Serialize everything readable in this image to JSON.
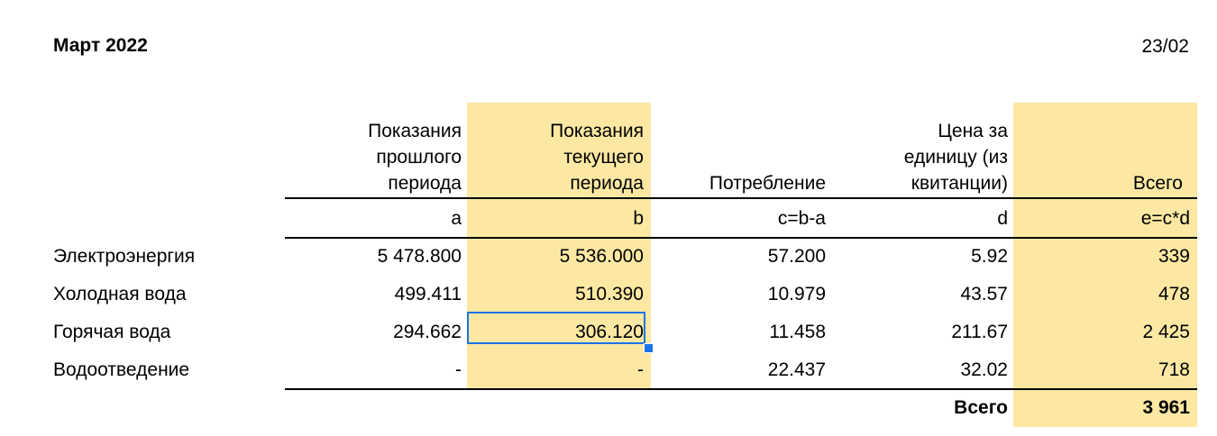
{
  "header": {
    "title": "Март 2022",
    "date": "23/02"
  },
  "columns": [
    {
      "label": "Показания прошлого периода",
      "lines": [
        "Показания",
        "прошлого",
        "периода"
      ],
      "code": "a"
    },
    {
      "label": "Показания текущего периода",
      "lines": [
        "Показания",
        "текущего",
        "периода"
      ],
      "code": "b"
    },
    {
      "label": "Потребление",
      "lines": [
        "",
        "",
        "Потребление"
      ],
      "code": "c=b-a"
    },
    {
      "label": "Цена за единицу (из квитанции)",
      "lines": [
        "Цена за",
        "единицу (из",
        "квитанции)"
      ],
      "code": "d"
    },
    {
      "label": "Всего",
      "lines": [
        "",
        "",
        "Всего"
      ],
      "code": "e=c*d"
    }
  ],
  "rows": [
    {
      "name": "Электроэнергия",
      "a": "5 478.800",
      "b": "5 536.000",
      "c": "57.200",
      "d": "5.92",
      "e": "339"
    },
    {
      "name": "Холодная вода",
      "a": "499.411",
      "b": "510.390",
      "c": "10.979",
      "d": "43.57",
      "e": "478"
    },
    {
      "name": "Горячая вода",
      "a": "294.662",
      "b": "306.120",
      "c": "11.458",
      "d": "211.67",
      "e": "2 425"
    },
    {
      "name": "Водоотведение",
      "a": "-",
      "b": "-",
      "c": "22.437",
      "d": "32.02",
      "e": "718"
    }
  ],
  "total": {
    "label": "Всего",
    "value": "3 961"
  },
  "colors": {
    "highlight": "#fce8a3",
    "selection": "#1a73e8"
  }
}
